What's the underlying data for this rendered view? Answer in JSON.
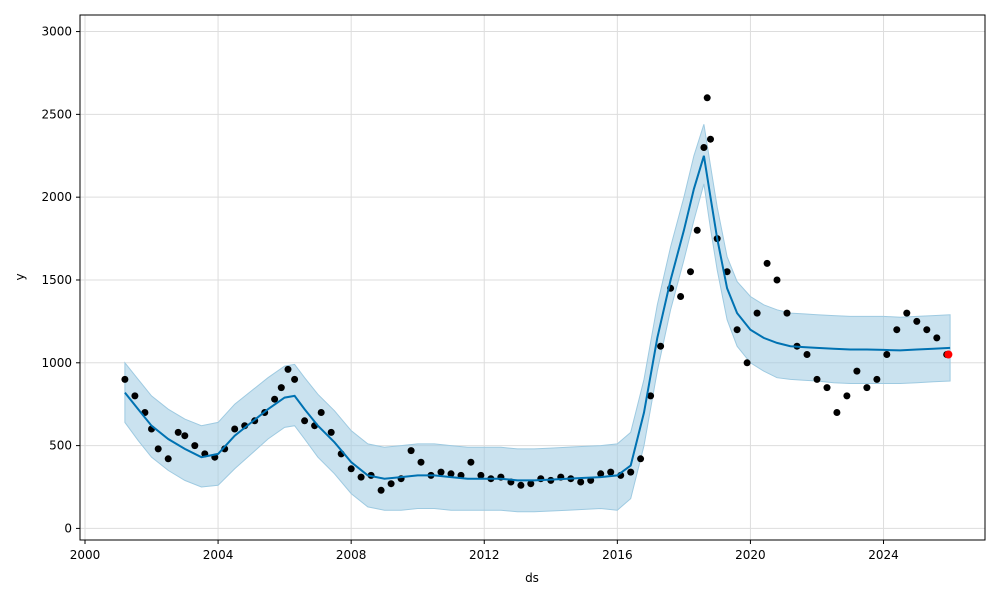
{
  "chart_data": {
    "type": "line",
    "title": "",
    "xlabel": "ds",
    "ylabel": "y",
    "xlim": [
      1999.85,
      2027.05
    ],
    "ylim": [
      -70,
      3100
    ],
    "x_ticks": [
      2000,
      2004,
      2008,
      2012,
      2016,
      2020,
      2024
    ],
    "x_tick_labels": [
      "2000",
      "2004",
      "2008",
      "2012",
      "2016",
      "2020",
      "2024"
    ],
    "y_ticks": [
      0,
      500,
      1000,
      1500,
      2000,
      2500,
      3000
    ],
    "y_tick_labels": [
      "0",
      "500",
      "1000",
      "1500",
      "2000",
      "2500",
      "3000"
    ],
    "grid": true,
    "colors": {
      "forecast": "#0072B2",
      "interval": "#9ecae1",
      "observed": "#000000",
      "latest": "#ff0000",
      "grid": "#dddddd"
    },
    "series": [
      {
        "role": "observed",
        "marker": "dot",
        "x": [
          2001.2,
          2001.5,
          2001.8,
          2002.0,
          2002.2,
          2002.5,
          2002.8,
          2003.0,
          2003.3,
          2003.6,
          2003.9,
          2004.2,
          2004.5,
          2004.8,
          2005.1,
          2005.4,
          2005.7,
          2005.9,
          2006.1,
          2006.3,
          2006.6,
          2006.9,
          2007.1,
          2007.4,
          2007.7,
          2008.0,
          2008.3,
          2008.6,
          2008.9,
          2009.2,
          2009.5,
          2009.8,
          2010.1,
          2010.4,
          2010.7,
          2011.0,
          2011.3,
          2011.6,
          2011.9,
          2012.2,
          2012.5,
          2012.8,
          2013.1,
          2013.4,
          2013.7,
          2014.0,
          2014.3,
          2014.6,
          2014.9,
          2015.2,
          2015.5,
          2015.8,
          2016.1,
          2016.4,
          2016.7,
          2017.0,
          2017.3,
          2017.6,
          2017.9,
          2018.2,
          2018.4,
          2018.6,
          2018.7,
          2018.8,
          2019.0,
          2019.3,
          2019.6,
          2019.9,
          2020.2,
          2020.5,
          2020.8,
          2021.1,
          2021.4,
          2021.7,
          2022.0,
          2022.3,
          2022.6,
          2022.9,
          2023.2,
          2023.5,
          2023.8,
          2024.1,
          2024.4,
          2024.7,
          2025.0,
          2025.3,
          2025.6,
          2025.9
        ],
        "y": [
          900,
          800,
          700,
          600,
          480,
          420,
          580,
          560,
          500,
          450,
          430,
          480,
          600,
          620,
          650,
          700,
          780,
          850,
          960,
          900,
          650,
          620,
          700,
          580,
          450,
          360,
          310,
          320,
          230,
          270,
          300,
          470,
          400,
          320,
          340,
          330,
          320,
          400,
          320,
          300,
          310,
          280,
          260,
          270,
          300,
          290,
          310,
          300,
          280,
          290,
          330,
          340,
          320,
          340,
          420,
          800,
          1100,
          1450,
          1400,
          1550,
          1800,
          2300,
          2600,
          2350,
          1750,
          1550,
          1200,
          1000,
          1300,
          1600,
          1500,
          1300,
          1100,
          1050,
          900,
          850,
          700,
          800,
          950,
          850,
          900,
          1050,
          1200,
          1300,
          1250,
          1200,
          1150,
          1050
        ]
      },
      {
        "role": "forecast",
        "name": "yhat",
        "x": [
          2001.2,
          2001.6,
          2002.0,
          2002.5,
          2003.0,
          2003.5,
          2004.0,
          2004.5,
          2005.0,
          2005.5,
          2006.0,
          2006.3,
          2006.6,
          2007.0,
          2007.5,
          2008.0,
          2008.5,
          2009.0,
          2009.5,
          2010.0,
          2010.5,
          2011.0,
          2011.5,
          2012.0,
          2012.5,
          2013.0,
          2013.5,
          2014.0,
          2014.5,
          2015.0,
          2015.5,
          2016.0,
          2016.4,
          2016.8,
          2017.2,
          2017.6,
          2018.0,
          2018.3,
          2018.6,
          2018.8,
          2019.0,
          2019.3,
          2019.6,
          2020.0,
          2020.4,
          2020.8,
          2021.2,
          2021.6,
          2022.0,
          2022.5,
          2023.0,
          2023.5,
          2024.0,
          2024.5,
          2025.0,
          2025.5,
          2026.0
        ],
        "y": [
          820,
          720,
          620,
          540,
          480,
          430,
          450,
          560,
          640,
          720,
          790,
          800,
          720,
          620,
          520,
          400,
          320,
          300,
          310,
          320,
          320,
          310,
          300,
          300,
          300,
          290,
          290,
          295,
          300,
          305,
          310,
          320,
          380,
          700,
          1150,
          1500,
          1800,
          2050,
          2250,
          2000,
          1750,
          1450,
          1300,
          1200,
          1150,
          1120,
          1100,
          1095,
          1090,
          1085,
          1080,
          1080,
          1078,
          1075,
          1080,
          1085,
          1090
        ]
      },
      {
        "role": "interval",
        "name": "yhat_lower / yhat_upper",
        "x": [
          2001.2,
          2001.6,
          2002.0,
          2002.5,
          2003.0,
          2003.5,
          2004.0,
          2004.5,
          2005.0,
          2005.5,
          2006.0,
          2006.3,
          2006.6,
          2007.0,
          2007.5,
          2008.0,
          2008.5,
          2009.0,
          2009.5,
          2010.0,
          2010.5,
          2011.0,
          2011.5,
          2012.0,
          2012.5,
          2013.0,
          2013.5,
          2014.0,
          2014.5,
          2015.0,
          2015.5,
          2016.0,
          2016.4,
          2016.8,
          2017.2,
          2017.6,
          2018.0,
          2018.3,
          2018.6,
          2018.8,
          2019.0,
          2019.3,
          2019.6,
          2020.0,
          2020.4,
          2020.8,
          2021.2,
          2021.6,
          2022.0,
          2022.5,
          2023.0,
          2023.5,
          2024.0,
          2024.5,
          2025.0,
          2025.5,
          2026.0
        ],
        "y_lower": [
          640,
          530,
          430,
          350,
          290,
          250,
          260,
          360,
          450,
          540,
          610,
          620,
          540,
          430,
          330,
          210,
          130,
          110,
          110,
          120,
          120,
          110,
          110,
          110,
          110,
          100,
          100,
          105,
          110,
          115,
          120,
          110,
          180,
          500,
          950,
          1320,
          1620,
          1860,
          2080,
          1810,
          1560,
          1260,
          1100,
          1000,
          950,
          910,
          900,
          895,
          890,
          880,
          875,
          875,
          875,
          875,
          880,
          885,
          890
        ],
        "y_upper": [
          1000,
          900,
          800,
          720,
          660,
          620,
          640,
          750,
          830,
          910,
          980,
          990,
          910,
          810,
          710,
          590,
          510,
          490,
          500,
          510,
          510,
          500,
          490,
          490,
          490,
          480,
          480,
          485,
          490,
          495,
          500,
          510,
          580,
          900,
          1350,
          1700,
          2000,
          2250,
          2440,
          2190,
          1940,
          1640,
          1490,
          1400,
          1350,
          1320,
          1300,
          1295,
          1290,
          1285,
          1280,
          1280,
          1280,
          1275,
          1280,
          1285,
          1290
        ]
      },
      {
        "role": "latest",
        "marker": "red-dot",
        "x": [
          2025.95
        ],
        "y": [
          1050
        ]
      }
    ]
  }
}
